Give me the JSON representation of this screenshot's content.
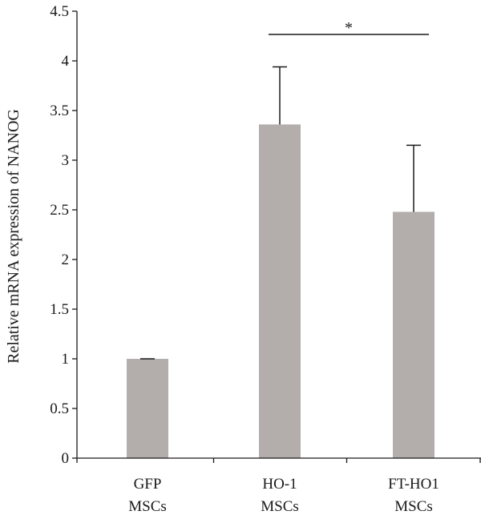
{
  "chart_data": {
    "type": "bar",
    "categories": [
      [
        "GFP",
        "MSCs"
      ],
      [
        "HO-1",
        "MSCs"
      ],
      [
        "FT-HO1",
        "MSCs"
      ]
    ],
    "values": [
      1.0,
      3.36,
      2.48
    ],
    "error_upper": [
      0.0,
      0.58,
      0.67
    ],
    "title": "",
    "xlabel": "",
    "ylabel": "Relative mRNA expression of NANOG",
    "ylim": [
      0,
      4.5
    ],
    "yticks": [
      0,
      0.5,
      1,
      1.5,
      2,
      2.5,
      3,
      3.5,
      4,
      4.5
    ],
    "ytick_labels": [
      "0",
      "0.5",
      "1",
      "1.5",
      "2",
      "2.5",
      "3",
      "3.5",
      "4",
      "4.5"
    ],
    "significance": {
      "between": [
        1,
        2
      ],
      "label": "*"
    },
    "bar_color": "#b3aeac",
    "axis_color": "#1a1a1a",
    "grid": false,
    "legend": "none"
  }
}
